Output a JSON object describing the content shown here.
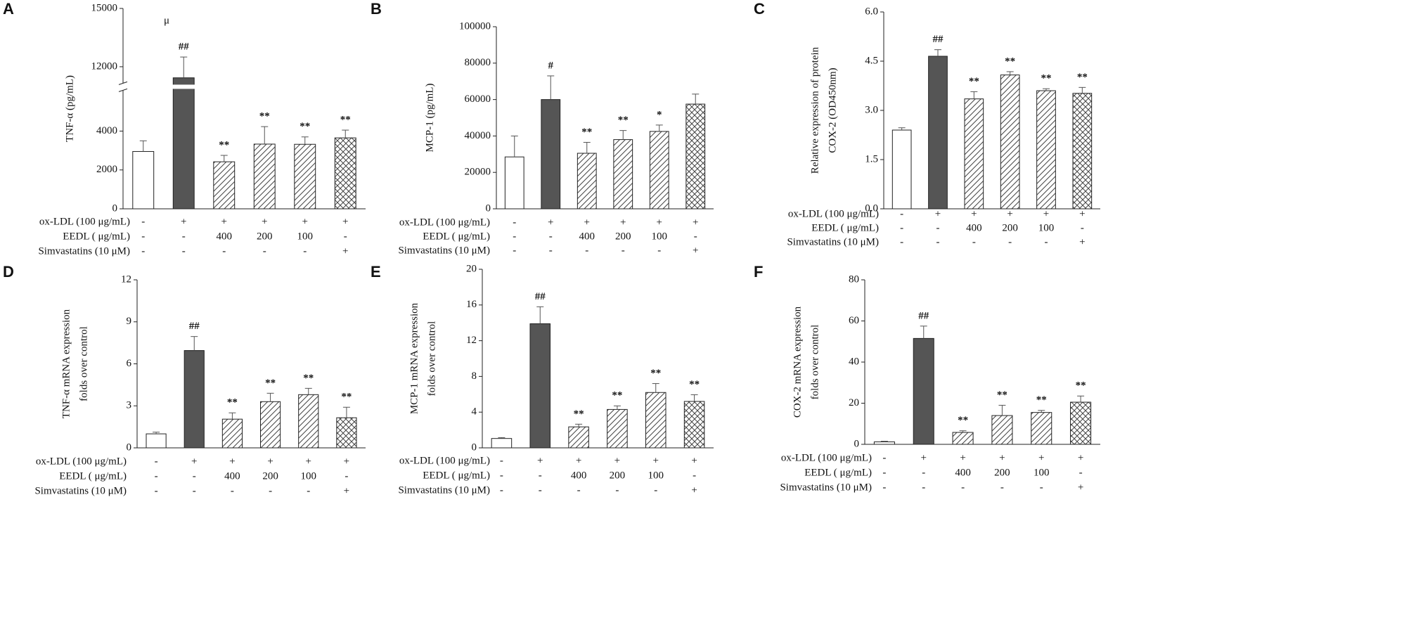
{
  "chart_data": [
    {
      "type": "bar",
      "label": "A",
      "ylabel": [
        "TNF-α    (pg/mL)"
      ],
      "annotation": "μ",
      "ylim": [
        0,
        15000
      ],
      "ybreak": [
        6100,
        11150
      ],
      "yticks": [
        0,
        2000,
        4000,
        12000,
        15000
      ],
      "values": [
        2950,
        11430,
        2420,
        3330,
        3320,
        3650
      ],
      "errors": [
        550,
        1070,
        330,
        900,
        380,
        400
      ],
      "significance": [
        null,
        "##",
        "**",
        "**",
        "**",
        "**"
      ],
      "fills": [
        "white",
        "#555555",
        "hatch",
        "hatch",
        "hatch",
        "crosshatch"
      ],
      "conditions": [
        {
          "label": "ox-LDL (100  μg/mL)",
          "values": [
            "-",
            "+",
            "+",
            "+",
            "+",
            "+"
          ]
        },
        {
          "label": "EEDL ( μg/mL)",
          "values": [
            "-",
            "-",
            "400",
            "200",
            "100",
            "-"
          ]
        },
        {
          "label": "Simvastatins (10  μM)",
          "values": [
            "-",
            "-",
            "-",
            "-",
            "-",
            "+"
          ]
        }
      ]
    },
    {
      "type": "bar",
      "label": "B",
      "ylabel": [
        "MCP-1 (pg/mL)"
      ],
      "ylim": [
        0,
        100000
      ],
      "yticks": [
        0,
        20000,
        40000,
        60000,
        80000,
        100000
      ],
      "values": [
        28500,
        60000,
        30500,
        38000,
        42500,
        57500
      ],
      "errors": [
        11500,
        13000,
        6000,
        5000,
        3500,
        5500
      ],
      "significance": [
        null,
        "#",
        "**",
        "**",
        "*",
        null
      ],
      "fills": [
        "white",
        "#555555",
        "hatch",
        "hatch",
        "hatch",
        "crosshatch"
      ],
      "conditions": [
        {
          "label": "ox-LDL (100  μg/mL)",
          "values": [
            "-",
            "+",
            "+",
            "+",
            "+",
            "+"
          ]
        },
        {
          "label": "EEDL ( μg/mL)",
          "values": [
            "-",
            "-",
            "400",
            "200",
            "100",
            "-"
          ]
        },
        {
          "label": "Simvastatins (10  μM)",
          "values": [
            "-",
            "-",
            "-",
            "-",
            "-",
            "+"
          ]
        }
      ]
    },
    {
      "type": "bar",
      "label": "C",
      "ylabel": [
        "Relative expression of protein",
        "COX-2 (OD450nm)"
      ],
      "ylim": [
        0,
        6
      ],
      "yticks": [
        {
          "value": 0,
          "label": "0.0"
        },
        {
          "value": 1.5,
          "label": "1.5"
        },
        {
          "value": 3,
          "label": "3.0"
        },
        {
          "value": 4.5,
          "label": "4.5"
        },
        {
          "value": 6,
          "label": "6.0"
        }
      ],
      "values": [
        2.4,
        4.65,
        3.35,
        4.08,
        3.6,
        3.52
      ],
      "errors": [
        0.07,
        0.2,
        0.22,
        0.1,
        0.06,
        0.18
      ],
      "significance": [
        null,
        "##",
        "**",
        "**",
        "**",
        "**"
      ],
      "fills": [
        "white",
        "#555555",
        "hatch",
        "hatch",
        "hatch",
        "crosshatch"
      ],
      "conditions": [
        {
          "label": "ox-LDL (100  μg/mL)",
          "values": [
            "-",
            "+",
            "+",
            "+",
            "+",
            "+"
          ]
        },
        {
          "label": "EEDL ( μg/mL)",
          "values": [
            "-",
            "-",
            "400",
            "200",
            "100",
            "-"
          ]
        },
        {
          "label": "Simvastatins (10  μM)",
          "values": [
            "-",
            "-",
            "-",
            "-",
            "-",
            "+"
          ]
        }
      ]
    },
    {
      "type": "bar",
      "label": "D",
      "ylabel": [
        "TNF-α  mRNA expression",
        "folds over control"
      ],
      "ylim": [
        0,
        12
      ],
      "yticks": [
        0,
        3,
        6,
        9,
        12
      ],
      "values": [
        1.0,
        6.95,
        2.05,
        3.3,
        3.8,
        2.15
      ],
      "errors": [
        0.12,
        1.0,
        0.45,
        0.6,
        0.45,
        0.75
      ],
      "significance": [
        null,
        "##",
        "**",
        "**",
        "**",
        "**"
      ],
      "fills": [
        "white",
        "#555555",
        "hatch",
        "hatch",
        "hatch",
        "crosshatch"
      ],
      "conditions": [
        {
          "label": "ox-LDL (100  μg/mL)",
          "values": [
            "-",
            "+",
            "+",
            "+",
            "+",
            "+"
          ]
        },
        {
          "label": "EEDL ( μg/mL)",
          "values": [
            "-",
            "-",
            "400",
            "200",
            "100",
            "-"
          ]
        },
        {
          "label": "Simvastatins (10  μM)",
          "values": [
            "-",
            "-",
            "-",
            "-",
            "-",
            "+"
          ]
        }
      ]
    },
    {
      "type": "bar",
      "label": "E",
      "ylabel": [
        "MCP-1 mRNA expression",
        "folds over control"
      ],
      "ylim": [
        0,
        20
      ],
      "yticks": [
        0,
        4,
        8,
        12,
        16,
        20
      ],
      "values": [
        1.05,
        13.9,
        2.35,
        4.3,
        6.2,
        5.2
      ],
      "errors": [
        0.1,
        1.9,
        0.3,
        0.4,
        1.0,
        0.75
      ],
      "significance": [
        null,
        "##",
        "**",
        "**",
        "**",
        "**"
      ],
      "fills": [
        "white",
        "#555555",
        "hatch",
        "hatch",
        "hatch",
        "crosshatch"
      ],
      "conditions": [
        {
          "label": "ox-LDL (100  μg/mL)",
          "values": [
            "-",
            "+",
            "+",
            "+",
            "+",
            "+"
          ]
        },
        {
          "label": "EEDL ( μg/mL)",
          "values": [
            "-",
            "-",
            "400",
            "200",
            "100",
            "-"
          ]
        },
        {
          "label": "Simvastatins (10  μM)",
          "values": [
            "-",
            "-",
            "-",
            "-",
            "-",
            "+"
          ]
        }
      ]
    },
    {
      "type": "bar",
      "label": "F",
      "ylabel": [
        "COX-2 mRNA expression",
        "folds over control"
      ],
      "ylim": [
        0,
        80
      ],
      "yticks": [
        0,
        20,
        40,
        60,
        80
      ],
      "values": [
        1.2,
        51.5,
        5.8,
        14,
        15.5,
        20.5
      ],
      "errors": [
        0.3,
        6,
        0.8,
        5,
        1,
        3
      ],
      "significance": [
        null,
        "##",
        "**",
        "**",
        "**",
        "**"
      ],
      "fills": [
        "white",
        "#555555",
        "hatch",
        "hatch",
        "hatch",
        "crosshatch"
      ],
      "conditions": [
        {
          "label": "ox-LDL (100  μg/mL)",
          "values": [
            "-",
            "+",
            "+",
            "+",
            "+",
            "+"
          ]
        },
        {
          "label": "EEDL ( μg/mL)",
          "values": [
            "-",
            "-",
            "400",
            "200",
            "100",
            "-"
          ]
        },
        {
          "label": "Simvastatins (10  μM)",
          "values": [
            "-",
            "-",
            "-",
            "-",
            "-",
            "+"
          ]
        }
      ]
    }
  ]
}
